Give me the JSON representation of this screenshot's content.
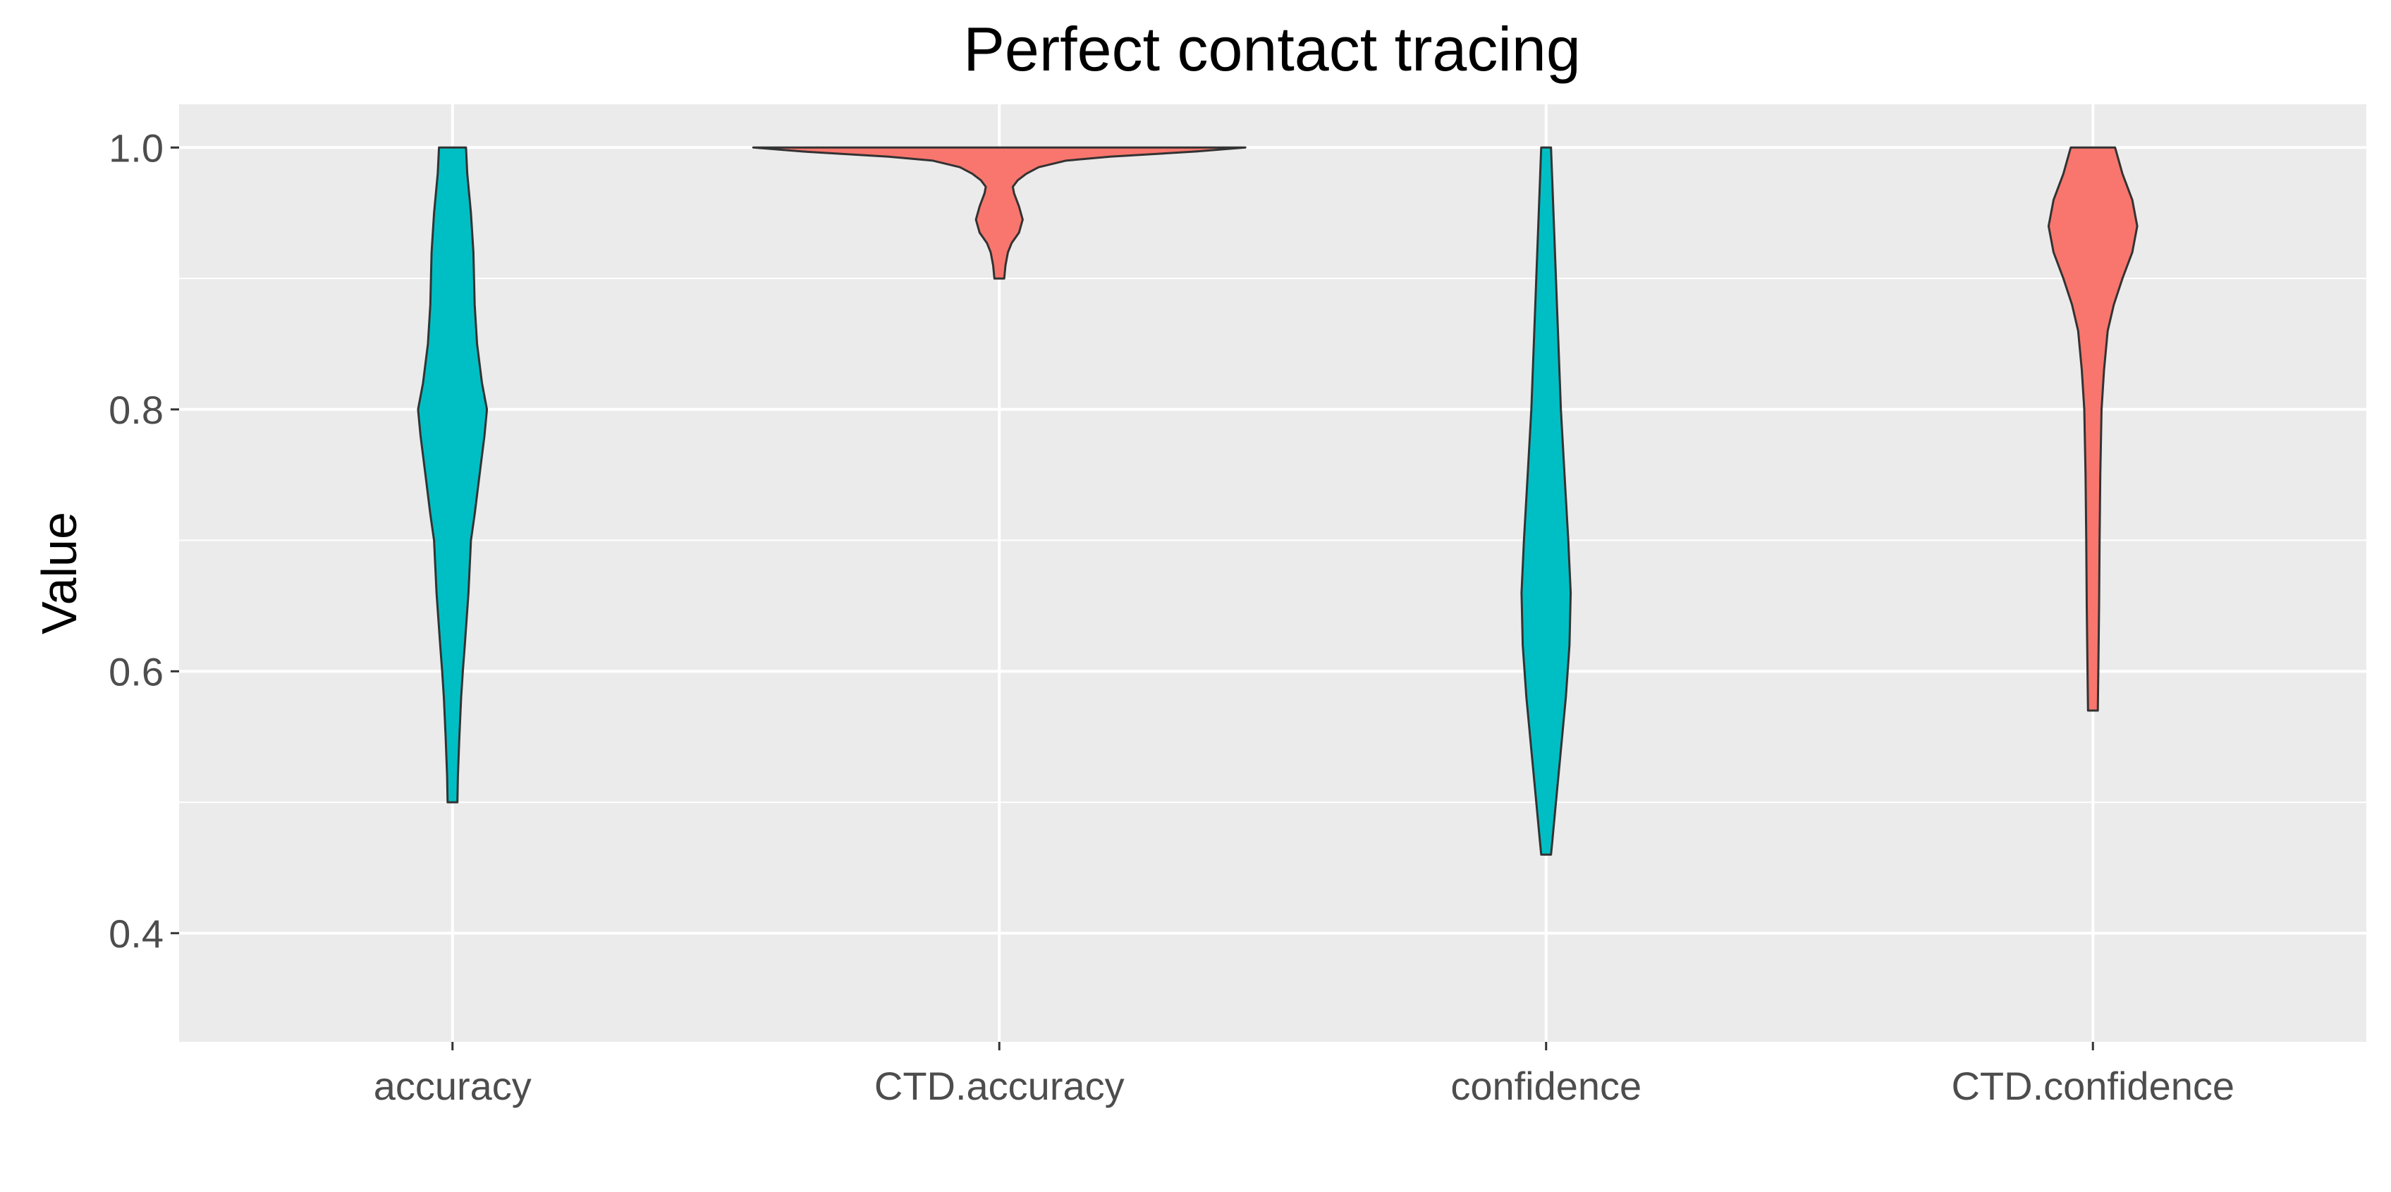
{
  "chart_data": {
    "type": "violin",
    "title": "Perfect contact tracing",
    "xlabel": "",
    "ylabel": "Value",
    "ylim": [
      0.317,
      1.033
    ],
    "yticks": [
      0.4,
      0.6,
      0.8,
      1.0
    ],
    "ytick_labels": [
      "0.4",
      "0.6",
      "0.8",
      "1.0"
    ],
    "grid": true,
    "legend": "none",
    "categories": [
      "accuracy",
      "CTD.accuracy",
      "confidence",
      "CTD.confidence"
    ],
    "violins": [
      {
        "category": "accuracy",
        "color": "#00BFC4",
        "min": 0.5,
        "max": 1.0,
        "profile": [
          [
            1.0,
            0.055
          ],
          [
            0.98,
            0.06
          ],
          [
            0.95,
            0.075
          ],
          [
            0.92,
            0.085
          ],
          [
            0.88,
            0.09
          ],
          [
            0.85,
            0.1
          ],
          [
            0.82,
            0.12
          ],
          [
            0.8,
            0.14
          ],
          [
            0.78,
            0.13
          ],
          [
            0.75,
            0.11
          ],
          [
            0.72,
            0.09
          ],
          [
            0.7,
            0.075
          ],
          [
            0.66,
            0.065
          ],
          [
            0.62,
            0.05
          ],
          [
            0.6,
            0.042
          ],
          [
            0.58,
            0.035
          ],
          [
            0.55,
            0.028
          ],
          [
            0.52,
            0.022
          ],
          [
            0.5,
            0.02
          ]
        ]
      },
      {
        "category": "CTD.accuracy",
        "color": "#F8766D",
        "min": 0.9,
        "max": 1.0,
        "profile": [
          [
            1.0,
            1.0
          ],
          [
            0.997,
            0.8
          ],
          [
            0.993,
            0.45
          ],
          [
            0.99,
            0.27
          ],
          [
            0.985,
            0.16
          ],
          [
            0.98,
            0.11
          ],
          [
            0.975,
            0.075
          ],
          [
            0.97,
            0.055
          ],
          [
            0.965,
            0.06
          ],
          [
            0.955,
            0.08
          ],
          [
            0.945,
            0.095
          ],
          [
            0.935,
            0.08
          ],
          [
            0.927,
            0.05
          ],
          [
            0.92,
            0.035
          ],
          [
            0.91,
            0.025
          ],
          [
            0.9,
            0.02
          ]
        ]
      },
      {
        "category": "confidence",
        "color": "#00BFC4",
        "min": 0.46,
        "max": 1.0,
        "profile": [
          [
            1.0,
            0.02
          ],
          [
            0.95,
            0.03
          ],
          [
            0.9,
            0.04
          ],
          [
            0.85,
            0.05
          ],
          [
            0.8,
            0.06
          ],
          [
            0.75,
            0.075
          ],
          [
            0.7,
            0.09
          ],
          [
            0.66,
            0.1
          ],
          [
            0.62,
            0.095
          ],
          [
            0.58,
            0.08
          ],
          [
            0.54,
            0.06
          ],
          [
            0.5,
            0.04
          ],
          [
            0.47,
            0.025
          ],
          [
            0.46,
            0.02
          ]
        ]
      },
      {
        "category": "CTD.confidence",
        "color": "#F8766D",
        "min": 0.57,
        "max": 1.0,
        "profile": [
          [
            1.0,
            0.09
          ],
          [
            0.98,
            0.12
          ],
          [
            0.96,
            0.16
          ],
          [
            0.94,
            0.18
          ],
          [
            0.92,
            0.16
          ],
          [
            0.9,
            0.12
          ],
          [
            0.88,
            0.085
          ],
          [
            0.86,
            0.06
          ],
          [
            0.83,
            0.045
          ],
          [
            0.8,
            0.035
          ],
          [
            0.75,
            0.03
          ],
          [
            0.7,
            0.027
          ],
          [
            0.65,
            0.025
          ],
          [
            0.6,
            0.022
          ],
          [
            0.57,
            0.02
          ]
        ]
      }
    ]
  }
}
